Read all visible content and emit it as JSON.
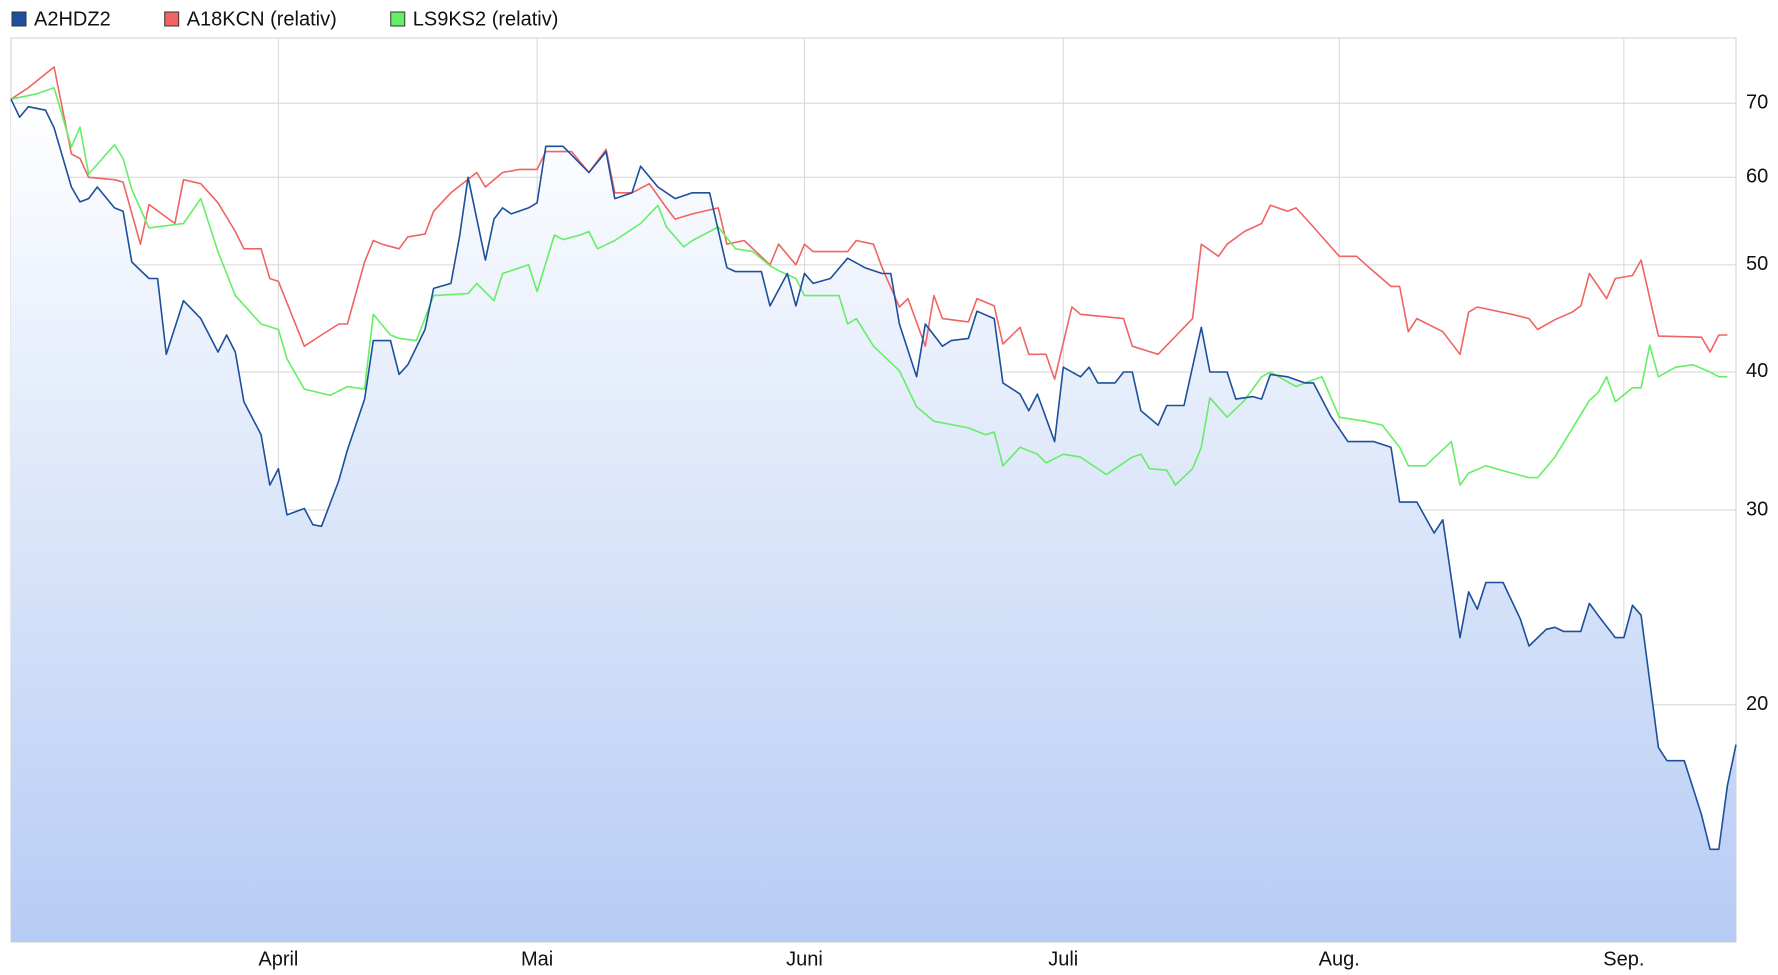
{
  "chart_data": {
    "type": "line",
    "log_y": true,
    "grid": true,
    "legend": "top-left",
    "xlim": [
      0,
      200
    ],
    "ylim": [
      12.2,
      80.2
    ],
    "xticks": [
      {
        "value": 31,
        "label": "April"
      },
      {
        "value": 61,
        "label": "Mai"
      },
      {
        "value": 92,
        "label": "Juni"
      },
      {
        "value": 122,
        "label": "Juli"
      },
      {
        "value": 154,
        "label": "Aug."
      },
      {
        "value": 187,
        "label": "Sep."
      }
    ],
    "yticks": [
      20,
      30,
      40,
      50,
      60,
      70
    ],
    "series": [
      {
        "name": "A2HDZ2",
        "color": "#1c4f9c",
        "area": true,
        "x": [
          0,
          1,
          2,
          4,
          5,
          7,
          8,
          9,
          10,
          12,
          13,
          14,
          16,
          17,
          18,
          20,
          22,
          24,
          25,
          26,
          27,
          29,
          30,
          31,
          32,
          34,
          35,
          36,
          38,
          39,
          41,
          42,
          44,
          45,
          46,
          48,
          49,
          51,
          52,
          53,
          55,
          56,
          57,
          58,
          60,
          61,
          62,
          64,
          67,
          69,
          70,
          72,
          73,
          75,
          77,
          79,
          81,
          83,
          84,
          87,
          88,
          90,
          91,
          92,
          93,
          95,
          97,
          99,
          101,
          102,
          103,
          105,
          106,
          108,
          109,
          111,
          112,
          114,
          115,
          117,
          118,
          119,
          121,
          122,
          124,
          125,
          126,
          128,
          129,
          130,
          131,
          133,
          134,
          136,
          138,
          139,
          141,
          142,
          144,
          145,
          146,
          148,
          150,
          151,
          153,
          155,
          158,
          160,
          161,
          163,
          165,
          166,
          168,
          169,
          170,
          171,
          173,
          175,
          176,
          178,
          179,
          180,
          182,
          183,
          184,
          186,
          187,
          188,
          189,
          191,
          192,
          194,
          196,
          197,
          198,
          199,
          200
        ],
        "values": [
          70.6,
          68,
          69.5,
          69,
          66.5,
          58.8,
          57,
          57.4,
          58.8,
          56.3,
          55.9,
          50.3,
          48.6,
          48.6,
          41.5,
          46.4,
          44.7,
          41.7,
          43.2,
          41.7,
          37.6,
          35.1,
          31.6,
          32.7,
          29.7,
          30.1,
          29.1,
          29,
          31.9,
          34,
          37.8,
          42.7,
          42.7,
          39.8,
          40.6,
          43.7,
          47.6,
          48.1,
          53,
          60,
          50.5,
          55,
          56.3,
          55.6,
          56.3,
          56.9,
          64,
          64,
          60.6,
          63.3,
          57.4,
          58.1,
          61.4,
          58.8,
          57.4,
          58.1,
          58.1,
          49.7,
          49.3,
          49.3,
          45.9,
          49.1,
          45.9,
          49.1,
          48.1,
          48.6,
          50.7,
          49.7,
          49.1,
          49.1,
          44.2,
          39.6,
          44.2,
          42.2,
          42.7,
          42.9,
          45.4,
          44.7,
          39.1,
          38.2,
          36.9,
          38.2,
          34.6,
          40.4,
          39.6,
          40.4,
          39.1,
          39.1,
          40,
          40,
          36.9,
          35.8,
          37.3,
          37.3,
          43.9,
          40,
          40,
          37.8,
          38,
          37.8,
          39.8,
          39.6,
          39.1,
          39.1,
          36.5,
          34.6,
          34.6,
          34.2,
          30.5,
          30.5,
          28.6,
          29.4,
          23,
          25.3,
          24.4,
          25.8,
          25.8,
          23.9,
          22.6,
          23.4,
          23.5,
          23.3,
          23.3,
          24.7,
          24.1,
          23,
          23,
          24.6,
          24.1,
          18.3,
          17.8,
          17.8,
          15.9,
          14.8,
          14.8,
          16.9,
          18.4
        ]
      },
      {
        "name": "A18KCN (relativ)",
        "color": "#f06464",
        "x": [
          0,
          2,
          5,
          7,
          8,
          9,
          12,
          13,
          15,
          16,
          19,
          20,
          22,
          24,
          26,
          27,
          29,
          30,
          31,
          34,
          36,
          38,
          39,
          41,
          42,
          43,
          45,
          46,
          48,
          49,
          51,
          54,
          55,
          57,
          59,
          61,
          62,
          63,
          65,
          67,
          69,
          70,
          72,
          74,
          76,
          77,
          79,
          82,
          83,
          85,
          88,
          89,
          91,
          92,
          93,
          97,
          98,
          100,
          101,
          103,
          104,
          106,
          107,
          108,
          111,
          112,
          114,
          115,
          117,
          118,
          120,
          121,
          123,
          124,
          129,
          130,
          133,
          137,
          138,
          140,
          141,
          143,
          145,
          146,
          148,
          149,
          151,
          154,
          156,
          158,
          160,
          161,
          162,
          163,
          166,
          168,
          169,
          170,
          174,
          176,
          177,
          179,
          181,
          182,
          183,
          185,
          186,
          188,
          189,
          191,
          196,
          197,
          198,
          199
        ],
        "values": [
          70.6,
          72.3,
          75.5,
          63,
          62.4,
          60,
          59.7,
          59.4,
          52.2,
          56.7,
          54.5,
          59.7,
          59.2,
          56.9,
          53.6,
          51.7,
          51.7,
          48.6,
          48.3,
          42.2,
          43.2,
          44.2,
          44.2,
          50.3,
          52.6,
          52.2,
          51.7,
          53,
          53.3,
          55.9,
          58.1,
          60.6,
          58.8,
          60.6,
          61,
          61,
          63.3,
          63.3,
          63.3,
          60.6,
          63.6,
          58.1,
          58.1,
          59.2,
          56.3,
          55,
          55.6,
          56.3,
          52.2,
          52.6,
          50,
          52.2,
          50,
          52.2,
          51.4,
          51.4,
          52.6,
          52.2,
          49.7,
          45.8,
          46.6,
          42.2,
          46.9,
          44.7,
          44.4,
          46.6,
          45.9,
          42.4,
          43.9,
          41.5,
          41.5,
          39.4,
          45.8,
          45.1,
          44.7,
          42.2,
          41.5,
          44.7,
          52.2,
          50.9,
          52.2,
          53.6,
          54.5,
          56.6,
          55.9,
          56.3,
          54.1,
          50.9,
          50.9,
          49.3,
          47.8,
          47.8,
          43.5,
          44.7,
          43.5,
          41.5,
          45.3,
          45.8,
          45.1,
          44.7,
          43.7,
          44.6,
          45.3,
          45.9,
          49.1,
          46.6,
          48.6,
          48.9,
          50.5,
          43.1,
          43,
          41.7,
          43.2,
          43.2
        ]
      },
      {
        "name": "LS9KS2 (relativ)",
        "color": "#66ee66",
        "x": [
          0,
          3,
          5,
          7,
          8,
          9,
          12,
          13,
          14,
          16,
          20,
          22,
          24,
          26,
          29,
          31,
          32,
          34,
          37,
          39,
          41,
          42,
          44,
          45,
          47,
          49,
          53,
          54,
          56,
          57,
          60,
          61,
          63,
          64,
          66,
          67,
          68,
          70,
          73,
          75,
          76,
          78,
          79,
          82,
          84,
          86,
          88,
          89,
          91,
          92,
          94,
          96,
          97,
          98,
          100,
          103,
          105,
          107,
          111,
          113,
          114,
          115,
          117,
          119,
          120,
          122,
          124,
          125,
          127,
          130,
          131,
          132,
          134,
          135,
          137,
          138,
          139,
          141,
          143,
          145,
          146,
          149,
          150,
          152,
          154,
          157,
          159,
          161,
          162,
          164,
          167,
          168,
          169,
          171,
          174,
          176,
          177,
          179,
          183,
          184,
          185,
          186,
          188,
          189,
          190,
          191,
          193,
          195,
          197,
          198,
          199
        ],
        "values": [
          70.6,
          71.4,
          72.3,
          63.9,
          66.6,
          60.4,
          64.2,
          62.4,
          58.5,
          54,
          54.5,
          57.4,
          51.4,
          46.9,
          44.2,
          43.7,
          41.1,
          38.6,
          38.1,
          38.8,
          38.6,
          45.1,
          43.2,
          42.9,
          42.7,
          46.9,
          47.1,
          48.1,
          46.4,
          49.1,
          50,
          47.3,
          53.2,
          52.7,
          53.2,
          53.6,
          51.7,
          52.6,
          54.5,
          56.6,
          54.1,
          51.9,
          52.6,
          54.1,
          51.7,
          51.4,
          49.9,
          49.4,
          48.6,
          46.9,
          46.9,
          46.9,
          44.2,
          44.7,
          42.2,
          40.1,
          37.2,
          36.1,
          35.6,
          35.1,
          35.3,
          32.9,
          34.2,
          33.7,
          33.1,
          33.7,
          33.5,
          33.1,
          32.3,
          33.5,
          33.7,
          32.7,
          32.6,
          31.6,
          32.7,
          34.2,
          37.9,
          36.4,
          37.7,
          39.6,
          40,
          38.8,
          39.1,
          39.6,
          36.4,
          36.1,
          35.8,
          34.2,
          32.9,
          32.9,
          34.6,
          31.6,
          32.4,
          32.9,
          32.4,
          32.1,
          32.1,
          33.5,
          37.7,
          38.3,
          39.6,
          37.6,
          38.7,
          38.7,
          42.3,
          39.6,
          40.4,
          40.6,
          40,
          39.6,
          39.6
        ]
      }
    ]
  }
}
